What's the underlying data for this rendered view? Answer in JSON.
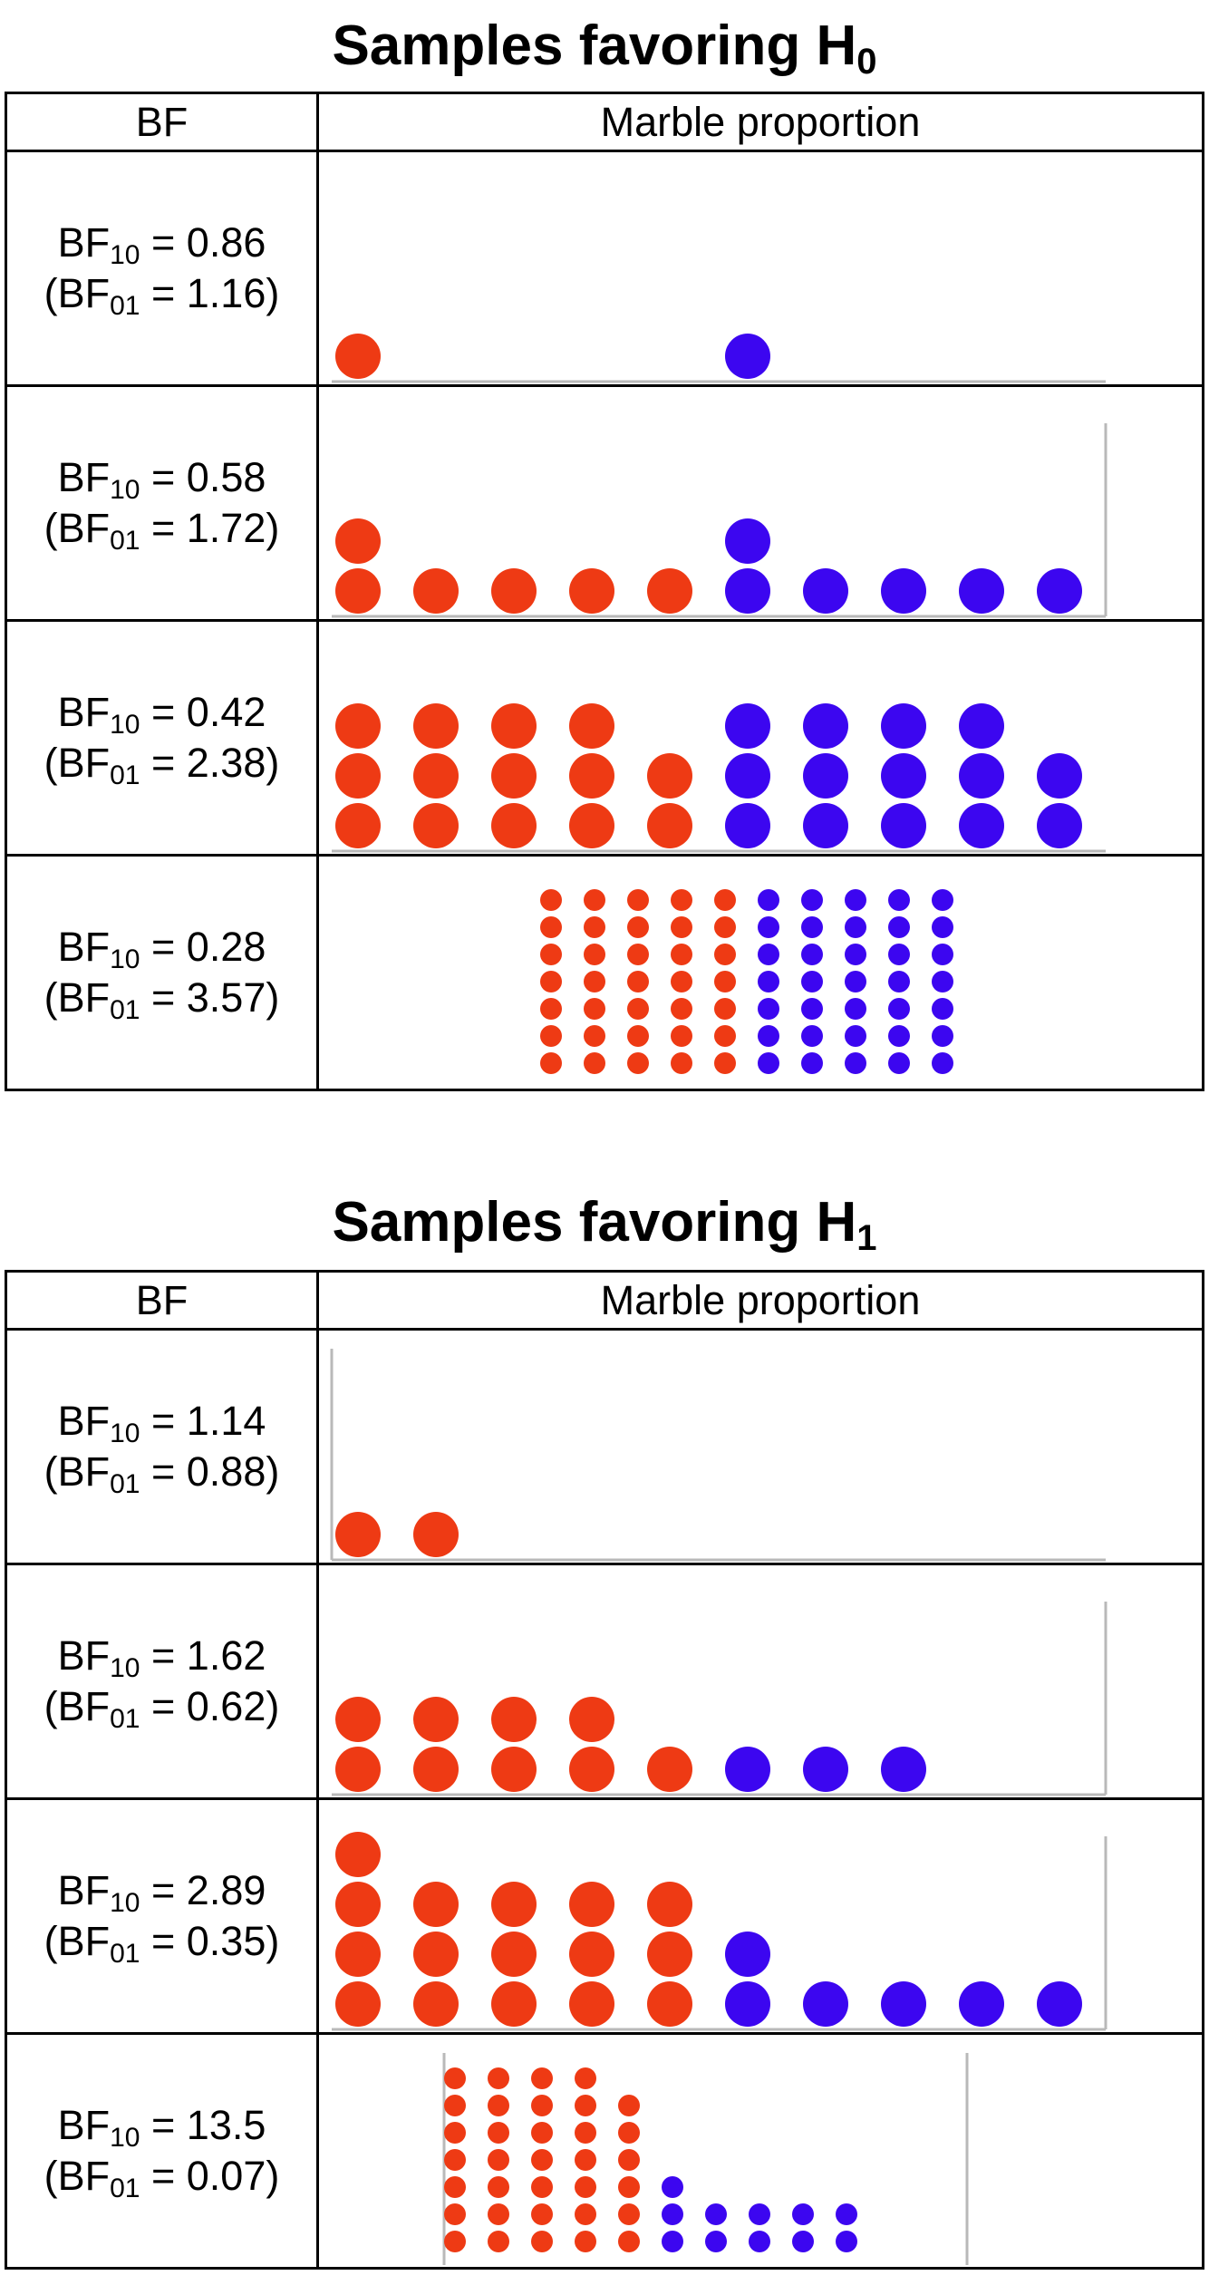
{
  "colors": {
    "red_marble": "#ee3a14",
    "blue_marble": "#3c06f0",
    "axis": "#b9b9b9"
  },
  "sections": [
    {
      "title": "Samples favoring H",
      "title_sub": "0",
      "header": {
        "bf": "BF",
        "marbles": "Marble proportion"
      },
      "rows": [
        {
          "bf10": "0.86",
          "bf01": "1.16",
          "marbles": {
            "red": [
              1
            ],
            "blue": [
              1
            ],
            "size": "large",
            "frame": "bottom"
          }
        },
        {
          "bf10": "0.58",
          "bf01": "1.72",
          "marbles": {
            "red": [
              2,
              1,
              1,
              1,
              1
            ],
            "blue": [
              2,
              1,
              1,
              1,
              1
            ],
            "size": "large",
            "frame": "bottom-right"
          }
        },
        {
          "bf10": "0.42",
          "bf01": "2.38",
          "marbles": {
            "red": [
              3,
              3,
              3,
              3,
              2
            ],
            "blue": [
              3,
              3,
              3,
              3,
              2
            ],
            "size": "large",
            "frame": "bottom"
          }
        },
        {
          "bf10": "0.28",
          "bf01": "3.57",
          "marbles": {
            "red": [
              7,
              7,
              7,
              7,
              7
            ],
            "blue": [
              7,
              7,
              7,
              7,
              7
            ],
            "size": "small",
            "frame": "none"
          }
        }
      ]
    },
    {
      "title": "Samples favoring H",
      "title_sub": "1",
      "header": {
        "bf": "BF",
        "marbles": "Marble proportion"
      },
      "rows": [
        {
          "bf10": "1.14",
          "bf01": "0.88",
          "marbles": {
            "red": [
              1,
              1
            ],
            "blue": [],
            "size": "large",
            "frame": "left-bottom"
          }
        },
        {
          "bf10": "1.62",
          "bf01": "0.62",
          "marbles": {
            "red": [
              2,
              2,
              2,
              2,
              1
            ],
            "blue": [
              1,
              1,
              1
            ],
            "size": "large",
            "frame": "bottom-right"
          }
        },
        {
          "bf10": "2.89",
          "bf01": "0.35",
          "marbles": {
            "red": [
              4,
              3,
              3,
              3,
              3
            ],
            "blue": [
              2,
              1,
              1,
              1,
              1
            ],
            "size": "large",
            "frame": "bottom-right"
          }
        },
        {
          "bf10": "13.5",
          "bf01": "0.07",
          "marbles": {
            "red": [
              7,
              7,
              7,
              7,
              6
            ],
            "blue": [
              3,
              2,
              2,
              2,
              2
            ],
            "size": "small",
            "frame": "left-right"
          }
        }
      ]
    }
  ],
  "labels": {
    "bf10_prefix": "BF",
    "bf10_sub": "10",
    "bf01_prefix": "(BF",
    "bf01_sub": "01",
    "equals": " = ",
    "close_paren": ")"
  }
}
